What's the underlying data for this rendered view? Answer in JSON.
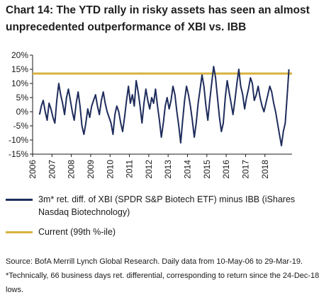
{
  "chart_data": {
    "type": "line",
    "title": "Chart 14: The YTD rally in risky assets has seen an almost unprecedented outperformance of XBI vs. IBB",
    "xlabel": "",
    "ylabel": "",
    "x_tick_labels": [
      "2006",
      "2007",
      "2008",
      "2009",
      "2010",
      "2011",
      "2012",
      "2013",
      "2014",
      "2015",
      "2016",
      "2017",
      "2018"
    ],
    "y_tick_labels": [
      "-15%",
      "-10%",
      "-5%",
      "0%",
      "5%",
      "10%",
      "15%",
      "20%"
    ],
    "y_ticks": [
      -15,
      -10,
      -5,
      0,
      5,
      10,
      15,
      20
    ],
    "xlim": [
      2006.0,
      2019.4
    ],
    "ylim": [
      -15,
      20
    ],
    "grid": false,
    "legend_position": "bottom",
    "series": [
      {
        "name": "3m* ret. diff. of XBI (SPDR S&P Biotech ETF) minus IBB (iShares Nasdaq Biotechnology)",
        "color": "#1f2d5c",
        "kind": "line",
        "x": [
          2006.36,
          2006.45,
          2006.55,
          2006.65,
          2006.75,
          2006.85,
          2006.95,
          2007.05,
          2007.15,
          2007.25,
          2007.35,
          2007.45,
          2007.55,
          2007.65,
          2007.75,
          2007.85,
          2007.95,
          2008.05,
          2008.15,
          2008.25,
          2008.35,
          2008.45,
          2008.55,
          2008.65,
          2008.75,
          2008.85,
          2008.95,
          2009.05,
          2009.15,
          2009.25,
          2009.35,
          2009.45,
          2009.55,
          2009.65,
          2009.75,
          2009.85,
          2009.95,
          2010.05,
          2010.15,
          2010.25,
          2010.35,
          2010.45,
          2010.55,
          2010.65,
          2010.75,
          2010.85,
          2010.95,
          2011.05,
          2011.15,
          2011.25,
          2011.35,
          2011.45,
          2011.55,
          2011.65,
          2011.75,
          2011.85,
          2011.95,
          2012.05,
          2012.15,
          2012.25,
          2012.35,
          2012.45,
          2012.55,
          2012.65,
          2012.75,
          2012.85,
          2012.95,
          2013.05,
          2013.15,
          2013.25,
          2013.35,
          2013.45,
          2013.55,
          2013.65,
          2013.75,
          2013.85,
          2013.95,
          2014.05,
          2014.15,
          2014.25,
          2014.35,
          2014.45,
          2014.55,
          2014.65,
          2014.75,
          2014.85,
          2014.95,
          2015.05,
          2015.15,
          2015.25,
          2015.35,
          2015.45,
          2015.55,
          2015.65,
          2015.75,
          2015.85,
          2015.95,
          2016.05,
          2016.15,
          2016.25,
          2016.35,
          2016.45,
          2016.55,
          2016.65,
          2016.75,
          2016.85,
          2016.95,
          2017.05,
          2017.15,
          2017.25,
          2017.35,
          2017.45,
          2017.55,
          2017.65,
          2017.75,
          2017.85,
          2017.95,
          2018.05,
          2018.15,
          2018.25,
          2018.35,
          2018.45,
          2018.55,
          2018.65,
          2018.75,
          2018.85,
          2018.95,
          2019.05,
          2019.15,
          2019.24
        ],
        "y": [
          -1,
          2,
          4,
          0,
          -3,
          3,
          1,
          -2,
          -4,
          4,
          10,
          6,
          3,
          -1,
          5,
          8,
          4,
          0,
          -3,
          3,
          7,
          2,
          -5,
          -8,
          -4,
          1,
          -2,
          2,
          4,
          6,
          2,
          -1,
          4,
          7,
          3,
          0,
          -2,
          -4,
          -8,
          -1,
          2,
          0,
          -4,
          -7,
          -2,
          4,
          9,
          3,
          6,
          2,
          11,
          7,
          2,
          -4,
          3,
          8,
          4,
          1,
          5,
          3,
          8,
          2,
          -3,
          -9,
          -4,
          2,
          5,
          1,
          4,
          9,
          6,
          0,
          -5,
          -11,
          -3,
          4,
          9,
          6,
          2,
          -3,
          -9,
          -4,
          3,
          8,
          13,
          9,
          2,
          -3,
          4,
          10,
          16,
          12,
          5,
          -2,
          -7,
          -4,
          5,
          11,
          7,
          3,
          -1,
          4,
          10,
          15,
          9,
          6,
          1,
          5,
          8,
          12,
          10,
          4,
          6,
          9,
          5,
          2,
          0,
          3,
          6,
          9,
          7,
          3,
          0,
          -4,
          -8,
          -12,
          -7,
          -4,
          6,
          15
        ]
      },
      {
        "name": "Current (99th %-ile)",
        "color": "#d7b23e",
        "kind": "hline",
        "value": 13.5
      }
    ],
    "source_note": "Source: BofA Merrill Lynch Global Research. Daily data from 10-May-06 to 29-Mar-19. *Technically, 66 business days ret. differential, corresponding to return since the 24-Dec-18 lows."
  }
}
